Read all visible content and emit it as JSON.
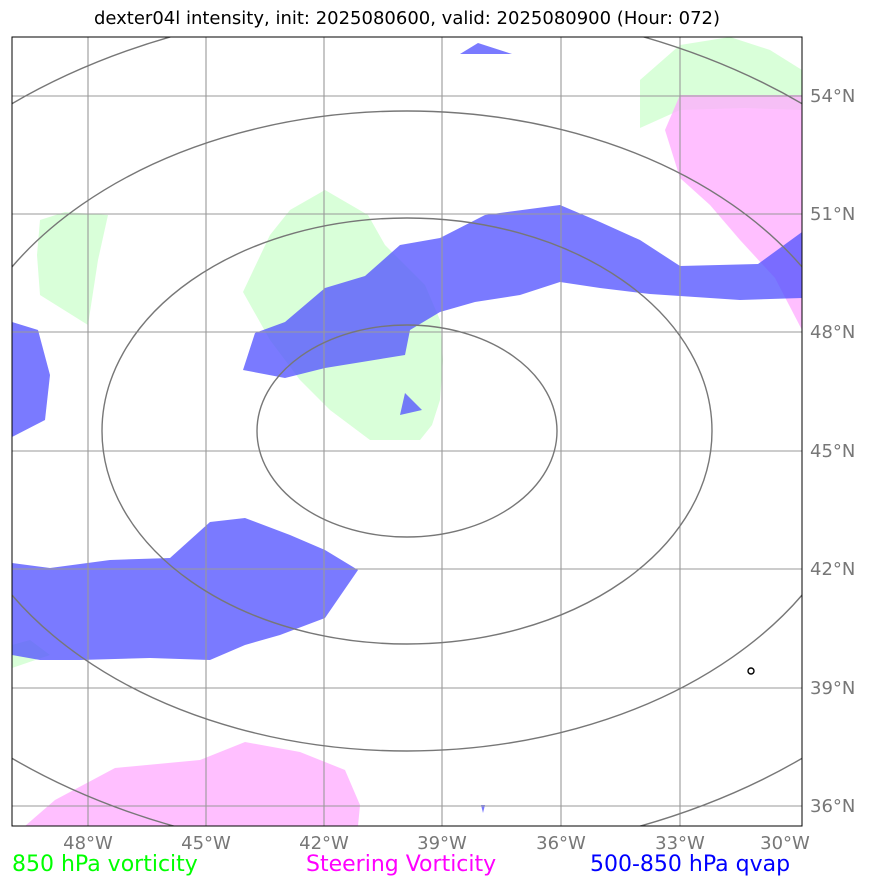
{
  "title": "dexter04l intensity, init: 2025080600, valid: 2025080900 (Hour: 072)",
  "axes": {
    "lon_ticks": [
      "48°W",
      "45°W",
      "42°W",
      "39°W",
      "36°W",
      "33°W",
      "30°W"
    ],
    "lat_ticks": [
      "54°N",
      "51°N",
      "48°N",
      "45°N",
      "42°N",
      "39°N",
      "36°N"
    ]
  },
  "legend": {
    "items": [
      {
        "label": "850 hPa vorticity",
        "color": "#00ff00"
      },
      {
        "label": "Steering Vorticity",
        "color": "#ff00ff"
      },
      {
        "label": "500-850 hPa qvap",
        "color": "#0000ff"
      }
    ]
  },
  "colors": {
    "vorticity_850": "#ccffcc",
    "steering_vorticity": "#ffaaff",
    "qvap": "#5555ff",
    "contour": "#777777",
    "grid": "#999999",
    "tick_label": "#777777"
  },
  "map_extent": {
    "lon": [
      -50,
      -30
    ],
    "lat": [
      35.5,
      55.5
    ]
  }
}
